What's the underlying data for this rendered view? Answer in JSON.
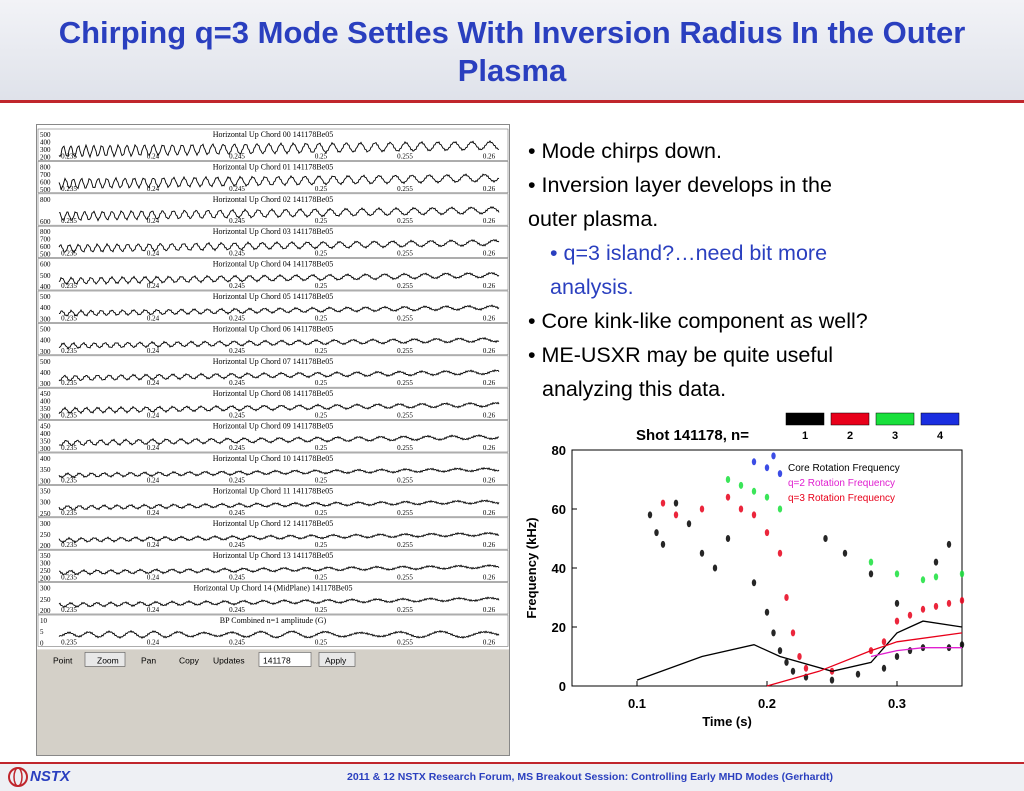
{
  "title": "Chirping q=3 Mode Settles With Inversion Radius In the Outer Plasma",
  "bullets": {
    "b1": "• Mode chirps down.",
    "b2a": "• Inversion layer develops in the",
    "b2b": "outer plasma.",
    "b3a": "• q=3 island?…need bit more",
    "b3b": "analysis.",
    "b4": "• Core kink-like component as well?",
    "b5a": "• ME-USXR may be quite useful",
    "b5b": "analyzing this data."
  },
  "footer": {
    "logo_text": "NSTX",
    "text": "2011 & 12 NSTX Research Forum, MS Breakout Session: Controlling Early MHD Modes (Gerhardt)"
  },
  "scope": {
    "x_ticks": [
      "0.235",
      "0.24",
      "0.245",
      "0.25",
      "0.255",
      "0.26"
    ],
    "panels": [
      {
        "label": "Horizontal Up Chord 00      141178Be05",
        "y_ticks": [
          "500",
          "400",
          "300",
          "200"
        ],
        "amp": 9,
        "period": 7
      },
      {
        "label": "Horizontal Up Chord 01      141178Be05",
        "y_ticks": [
          "800",
          "700",
          "600",
          "500"
        ],
        "amp": 8,
        "period": 7.5
      },
      {
        "label": "Horizontal Up Chord 02      141178Be05",
        "y_ticks": [
          "800",
          "600"
        ],
        "amp": 7,
        "period": 8
      },
      {
        "label": "Horizontal Up Chord 03      141178Be05",
        "y_ticks": [
          "800",
          "700",
          "600",
          "500"
        ],
        "amp": 6,
        "period": 8.5
      },
      {
        "label": "Horizontal Up Chord 04      141178Be05",
        "y_ticks": [
          "600",
          "500",
          "400"
        ],
        "amp": 5,
        "period": 9
      },
      {
        "label": "Horizontal Up Chord 05      141178Be05",
        "y_ticks": [
          "500",
          "400",
          "300"
        ],
        "amp": 4,
        "period": 9
      },
      {
        "label": "Horizontal Up Chord 06      141178Be05",
        "y_ticks": [
          "500",
          "400",
          "300"
        ],
        "amp": 4,
        "period": 9.5
      },
      {
        "label": "Horizontal Up Chord 07      141178Be05",
        "y_ticks": [
          "500",
          "400",
          "300"
        ],
        "amp": 4,
        "period": 10
      },
      {
        "label": "Horizontal Up Chord 08      141178Be05",
        "y_ticks": [
          "450",
          "400",
          "350",
          "300"
        ],
        "amp": 4,
        "period": 10
      },
      {
        "label": "Horizontal Up Chord 09      141178Be05",
        "y_ticks": [
          "450",
          "400",
          "350",
          "300"
        ],
        "amp": 4,
        "period": 10.5
      },
      {
        "label": "Horizontal Up Chord 10      141178Be05",
        "y_ticks": [
          "400",
          "350",
          "300"
        ],
        "amp": 3,
        "period": 11
      },
      {
        "label": "Horizontal Up Chord 11      141178Be05",
        "y_ticks": [
          "350",
          "300",
          "250"
        ],
        "amp": 3,
        "period": 11
      },
      {
        "label": "Horizontal Up Chord 12      141178Be05",
        "y_ticks": [
          "300",
          "250",
          "200"
        ],
        "amp": 3,
        "period": 11.5
      },
      {
        "label": "Horizontal Up Chord 13      141178Be05",
        "y_ticks": [
          "350",
          "300",
          "250",
          "200"
        ],
        "amp": 3,
        "period": 12
      },
      {
        "label": "Horizontal Up Chord 14 (MidPlane)      141178Be05",
        "y_ticks": [
          "300",
          "250",
          "200"
        ],
        "amp": 3,
        "period": 12
      },
      {
        "label": "BP Combined n=1 amplitude (G)",
        "y_ticks": [
          "10",
          "5",
          "0"
        ],
        "amp": 5,
        "period": 18
      }
    ],
    "toolbar": {
      "point": "Point",
      "zoom": "Zoom",
      "pan": "Pan",
      "copy": "Copy",
      "updates": "Updates",
      "shot": "141178",
      "apply": "Apply"
    }
  },
  "chart_data": {
    "type": "scatter",
    "title": "Shot 141178, n=",
    "xlabel": "Time (s)",
    "ylabel": "Frequency (kHz)",
    "xlim": [
      0.05,
      0.35
    ],
    "ylim": [
      0,
      80
    ],
    "x_ticks": [
      "0.1",
      "0.2",
      "0.3"
    ],
    "y_ticks": [
      "0",
      "20",
      "40",
      "60",
      "80"
    ],
    "legend": [
      {
        "label": "1",
        "color": "#000000"
      },
      {
        "label": "2",
        "color": "#e8001a"
      },
      {
        "label": "3",
        "color": "#19e03c"
      },
      {
        "label": "4",
        "color": "#1a2ee0"
      }
    ],
    "annotations": [
      {
        "text": "Core Rotation Frequency",
        "color": "#000000"
      },
      {
        "text": "q=2 Rotation Frequency",
        "color": "#e020d0"
      },
      {
        "text": "q=3 Rotation Frequency",
        "color": "#e8001a"
      }
    ],
    "series": [
      {
        "name": "Core Rotation Frequency",
        "color": "#000000",
        "x": [
          0.1,
          0.15,
          0.19,
          0.21,
          0.25,
          0.28,
          0.3,
          0.32,
          0.35
        ],
        "y": [
          2,
          10,
          14,
          10,
          5,
          8,
          18,
          22,
          20
        ]
      },
      {
        "name": "q=2 Rotation Frequency",
        "color": "#e020d0",
        "x": [
          0.28,
          0.3,
          0.32,
          0.35
        ],
        "y": [
          10,
          12,
          13,
          13
        ]
      },
      {
        "name": "q=3 Rotation Frequency",
        "color": "#e8001a",
        "x": [
          0.2,
          0.24,
          0.28,
          0.3,
          0.35
        ],
        "y": [
          0,
          5,
          12,
          15,
          18
        ]
      }
    ],
    "points": {
      "n1": [
        [
          0.11,
          58
        ],
        [
          0.115,
          52
        ],
        [
          0.12,
          48
        ],
        [
          0.13,
          62
        ],
        [
          0.14,
          55
        ],
        [
          0.15,
          45
        ],
        [
          0.16,
          40
        ],
        [
          0.17,
          50
        ],
        [
          0.19,
          35
        ],
        [
          0.2,
          25
        ],
        [
          0.205,
          18
        ],
        [
          0.21,
          12
        ],
        [
          0.215,
          8
        ],
        [
          0.22,
          5
        ],
        [
          0.23,
          3
        ],
        [
          0.25,
          2
        ],
        [
          0.27,
          4
        ],
        [
          0.29,
          6
        ],
        [
          0.3,
          10
        ],
        [
          0.31,
          12
        ],
        [
          0.32,
          13
        ],
        [
          0.34,
          13
        ],
        [
          0.35,
          14
        ],
        [
          0.245,
          50
        ],
        [
          0.26,
          45
        ],
        [
          0.28,
          38
        ],
        [
          0.3,
          28
        ],
        [
          0.33,
          42
        ],
        [
          0.34,
          48
        ]
      ],
      "n2": [
        [
          0.12,
          62
        ],
        [
          0.13,
          58
        ],
        [
          0.15,
          60
        ],
        [
          0.17,
          64
        ],
        [
          0.18,
          60
        ],
        [
          0.19,
          58
        ],
        [
          0.2,
          52
        ],
        [
          0.21,
          45
        ],
        [
          0.215,
          30
        ],
        [
          0.22,
          18
        ],
        [
          0.225,
          10
        ],
        [
          0.23,
          6
        ],
        [
          0.25,
          5
        ],
        [
          0.28,
          12
        ],
        [
          0.29,
          15
        ],
        [
          0.3,
          22
        ],
        [
          0.31,
          24
        ],
        [
          0.32,
          26
        ],
        [
          0.33,
          27
        ],
        [
          0.34,
          28
        ],
        [
          0.35,
          29
        ]
      ],
      "n3": [
        [
          0.17,
          70
        ],
        [
          0.18,
          68
        ],
        [
          0.19,
          66
        ],
        [
          0.2,
          64
        ],
        [
          0.21,
          60
        ],
        [
          0.28,
          42
        ],
        [
          0.3,
          38
        ],
        [
          0.32,
          36
        ],
        [
          0.33,
          37
        ],
        [
          0.35,
          38
        ]
      ],
      "n4": [
        [
          0.19,
          76
        ],
        [
          0.2,
          74
        ],
        [
          0.21,
          72
        ],
        [
          0.205,
          78
        ]
      ]
    }
  }
}
